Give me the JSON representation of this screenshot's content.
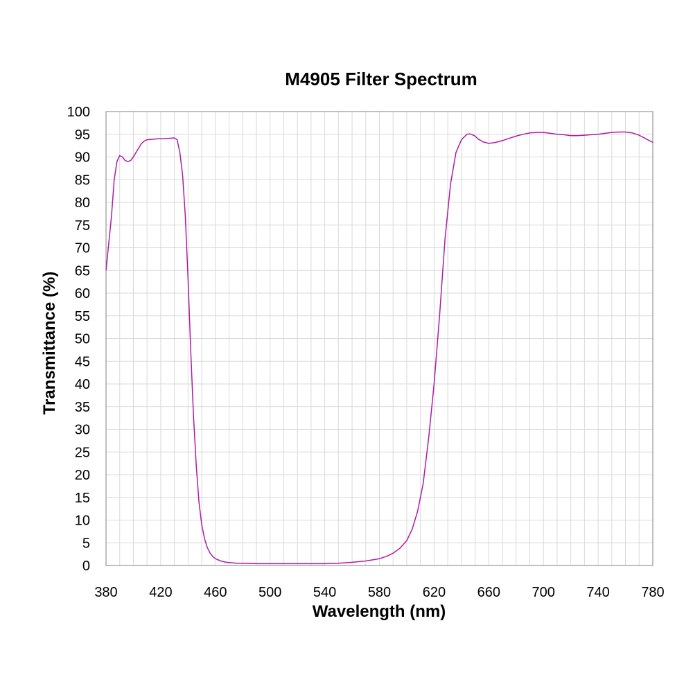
{
  "chart_data": {
    "type": "line",
    "title": "M4905 Filter Spectrum",
    "xlabel": "Wavelength (nm)",
    "ylabel": "Transmittance (%)",
    "xlim": [
      380,
      780
    ],
    "ylim": [
      0,
      100
    ],
    "x_ticks": [
      380,
      420,
      460,
      500,
      540,
      580,
      620,
      660,
      700,
      740,
      780
    ],
    "y_ticks": [
      0,
      5,
      10,
      15,
      20,
      25,
      30,
      35,
      40,
      45,
      50,
      55,
      60,
      65,
      70,
      75,
      80,
      85,
      90,
      95,
      100
    ],
    "x_minor_step": 10,
    "grid": true,
    "line_color": "#b01aa6",
    "series": [
      {
        "x": [
          380,
          384,
          386,
          388,
          390,
          392,
          394,
          396,
          398,
          400,
          402,
          404,
          406,
          408,
          410,
          414,
          418,
          422,
          426,
          430,
          432,
          434,
          436,
          438,
          440,
          442,
          444,
          446,
          448,
          450,
          452,
          454,
          456,
          458,
          460,
          464,
          468,
          472,
          476,
          480,
          490,
          500,
          520,
          540,
          550,
          560,
          570,
          580,
          585,
          590,
          595,
          600,
          604,
          608,
          612,
          616,
          620,
          624,
          628,
          632,
          636,
          640,
          644,
          646,
          648,
          650,
          652,
          656,
          660,
          665,
          670,
          675,
          680,
          685,
          690,
          695,
          700,
          705,
          710,
          715,
          720,
          725,
          730,
          735,
          740,
          745,
          750,
          755,
          760,
          765,
          770,
          775,
          780
        ],
        "y": [
          65,
          77,
          85,
          89,
          90.3,
          90,
          89.2,
          89,
          89.2,
          90,
          91,
          92,
          93,
          93.5,
          93.8,
          93.9,
          94,
          94,
          94.1,
          94.2,
          93.8,
          91,
          86,
          77,
          63,
          47,
          33,
          22,
          14,
          9,
          6,
          4,
          2.8,
          2,
          1.5,
          1,
          0.7,
          0.6,
          0.5,
          0.5,
          0.4,
          0.4,
          0.4,
          0.4,
          0.5,
          0.7,
          1,
          1.5,
          2,
          2.7,
          3.8,
          5.5,
          8,
          12,
          18,
          28,
          40,
          55,
          72,
          84,
          91,
          93.8,
          95,
          95.1,
          94.9,
          94.6,
          94,
          93.3,
          93,
          93.2,
          93.6,
          94.1,
          94.6,
          95,
          95.3,
          95.4,
          95.4,
          95.2,
          95,
          94.9,
          94.7,
          94.7,
          94.8,
          94.9,
          95,
          95.2,
          95.4,
          95.5,
          95.5,
          95.3,
          94.8,
          94,
          93.2
        ]
      }
    ]
  }
}
